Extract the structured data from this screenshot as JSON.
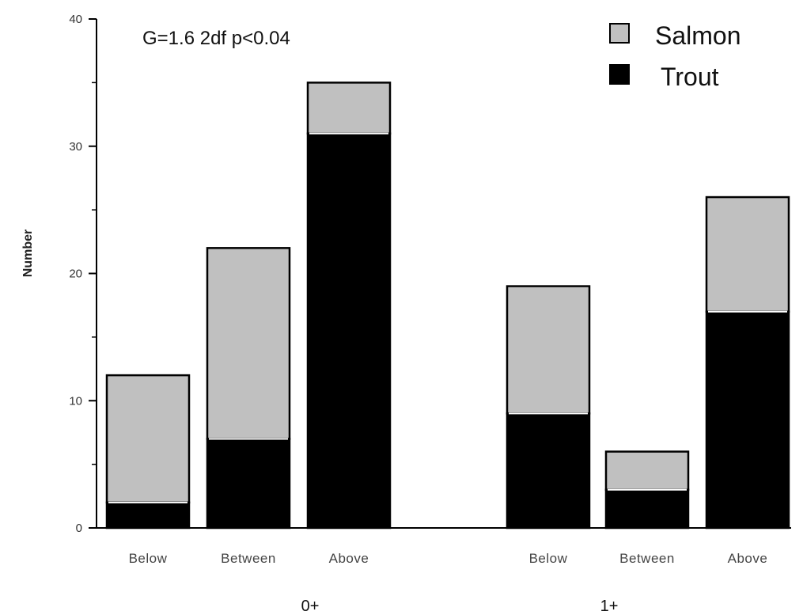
{
  "chart_data": {
    "type": "bar",
    "stacked": true,
    "title": "",
    "xlabel": "",
    "ylabel": "Number",
    "ylim": [
      0,
      40
    ],
    "yticks": [
      "0",
      "10",
      "20",
      "30",
      "40"
    ],
    "annotation": "G=1.6 2df p<0.04",
    "legend_position": "top-right",
    "groups": [
      "0+",
      "1+"
    ],
    "categories": [
      "Below",
      "Between",
      "Above"
    ],
    "series": [
      {
        "name": "Trout",
        "color": "#000000",
        "values": [
          [
            2,
            7,
            31
          ],
          [
            9,
            3,
            17
          ]
        ]
      },
      {
        "name": "Salmon",
        "color": "#c0c0c0",
        "values": [
          [
            10,
            15,
            4
          ],
          [
            10,
            3,
            9
          ]
        ]
      }
    ],
    "legend": [
      "Salmon",
      "Trout"
    ]
  }
}
